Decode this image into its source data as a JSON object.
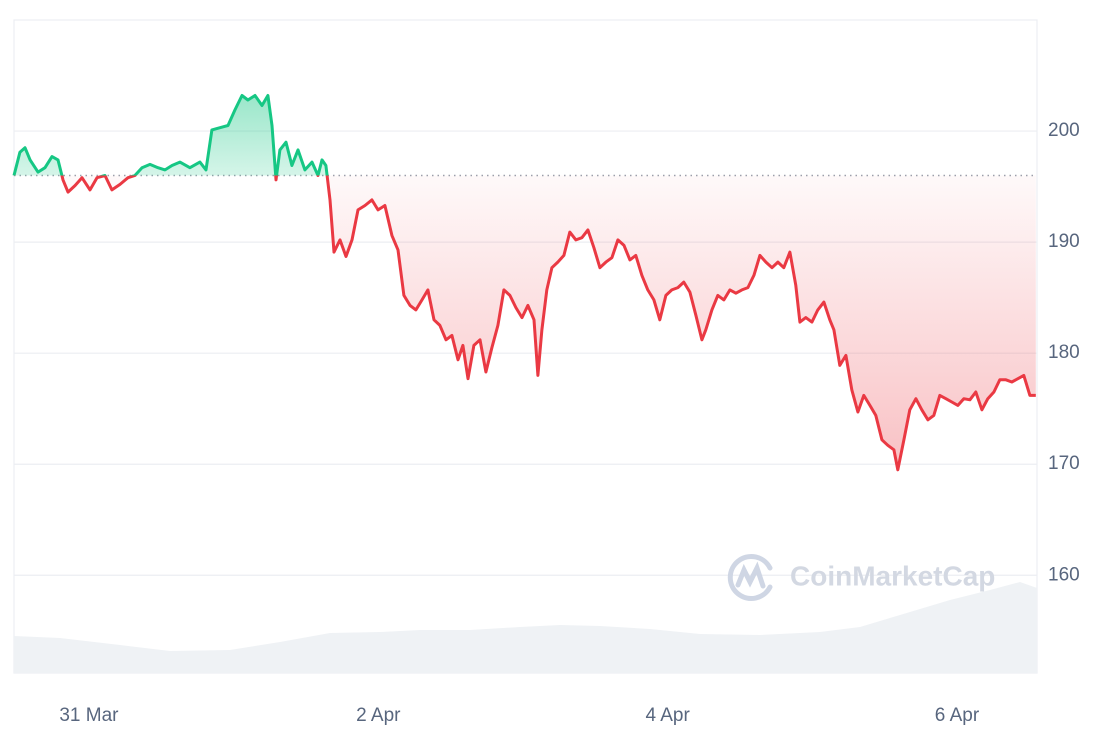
{
  "chart_data": {
    "type": "line",
    "x": [
      -0.518,
      -0.477,
      -0.442,
      -0.407,
      -0.352,
      -0.304,
      -0.255,
      -0.214,
      -0.179,
      -0.145,
      -0.096,
      -0.048,
      0.007,
      0.056,
      0.111,
      0.159,
      0.215,
      0.27,
      0.318,
      0.367,
      0.422,
      0.477,
      0.526,
      0.574,
      0.629,
      0.698,
      0.767,
      0.809,
      0.85,
      0.906,
      0.961,
      1.009,
      1.058,
      1.099,
      1.148,
      1.196,
      1.237,
      1.265,
      1.293,
      1.32,
      1.362,
      1.403,
      1.445,
      1.493,
      1.542,
      1.583,
      1.611,
      1.638,
      1.666,
      1.694,
      1.735,
      1.777,
      1.818,
      1.86,
      1.908,
      1.956,
      1.998,
      2.046,
      2.094,
      2.136,
      2.177,
      2.219,
      2.26,
      2.302,
      2.343,
      2.385,
      2.426,
      2.468,
      2.509,
      2.551,
      2.585,
      2.62,
      2.661,
      2.703,
      2.744,
      2.785,
      2.827,
      2.868,
      2.91,
      2.951,
      2.993,
      3.034,
      3.076,
      3.103,
      3.131,
      3.165,
      3.2,
      3.241,
      3.283,
      3.324,
      3.366,
      3.407,
      3.449,
      3.49,
      3.532,
      3.573,
      3.615,
      3.656,
      3.698,
      3.739,
      3.78,
      3.822,
      3.863,
      3.905,
      3.946,
      3.988,
      4.029,
      4.071,
      4.112,
      4.154,
      4.195,
      4.237,
      4.264,
      4.306,
      4.347,
      4.389,
      4.43,
      4.472,
      4.513,
      4.555,
      4.596,
      4.638,
      4.679,
      4.721,
      4.762,
      4.803,
      4.845,
      4.886,
      4.914,
      4.955,
      4.997,
      5.038,
      5.08,
      5.121,
      5.149,
      5.19,
      5.232,
      5.273,
      5.315,
      5.356,
      5.398,
      5.439,
      5.481,
      5.522,
      5.564,
      5.591,
      5.633,
      5.674,
      5.716,
      5.757,
      5.799,
      5.84,
      5.881,
      5.923,
      5.964,
      6.006,
      6.047,
      6.089,
      6.13,
      6.172,
      6.213,
      6.255,
      6.296,
      6.338,
      6.379,
      6.421,
      6.462,
      6.504,
      6.545
    ],
    "values": [
      196.0,
      198.1,
      198.5,
      197.4,
      196.3,
      196.7,
      197.7,
      197.4,
      195.6,
      194.5,
      195.1,
      195.8,
      194.7,
      195.8,
      196.0,
      194.7,
      195.2,
      195.8,
      196.0,
      196.7,
      197.0,
      196.7,
      196.5,
      196.9,
      197.2,
      196.7,
      197.2,
      196.5,
      200.1,
      200.3,
      200.5,
      201.9,
      203.2,
      202.8,
      203.2,
      202.3,
      203.2,
      200.5,
      195.6,
      198.3,
      199.0,
      196.9,
      198.3,
      196.5,
      197.2,
      196.0,
      197.4,
      196.9,
      193.8,
      189.1,
      190.2,
      188.7,
      190.2,
      192.9,
      193.3,
      193.8,
      192.9,
      193.3,
      190.6,
      189.3,
      185.2,
      184.3,
      183.9,
      184.8,
      185.7,
      183.0,
      182.5,
      181.2,
      181.6,
      179.4,
      180.7,
      177.7,
      180.7,
      181.2,
      178.3,
      180.5,
      182.5,
      185.7,
      185.2,
      184.1,
      183.2,
      184.3,
      183.0,
      178.0,
      182.1,
      185.7,
      187.7,
      188.2,
      188.8,
      190.9,
      190.2,
      190.4,
      191.1,
      189.5,
      187.7,
      188.2,
      188.6,
      190.2,
      189.7,
      188.4,
      188.8,
      187.0,
      185.7,
      184.8,
      183.0,
      185.2,
      185.7,
      185.9,
      186.4,
      185.5,
      183.4,
      181.2,
      182.1,
      183.9,
      185.2,
      184.8,
      185.7,
      185.4,
      185.7,
      185.9,
      187.0,
      188.8,
      188.2,
      187.7,
      188.2,
      187.7,
      189.1,
      186.1,
      182.8,
      183.2,
      182.8,
      183.9,
      184.6,
      183.0,
      182.1,
      178.9,
      179.8,
      176.7,
      174.7,
      176.2,
      175.3,
      174.4,
      172.2,
      171.7,
      171.3,
      169.5,
      172.2,
      174.9,
      175.9,
      174.9,
      174.0,
      174.4,
      176.2,
      175.9,
      175.6,
      175.3,
      175.9,
      175.8,
      176.5,
      174.9,
      175.9,
      176.5,
      177.6,
      177.6,
      177.4,
      177.7,
      178.0,
      176.2,
      176.2
    ],
    "baseline": 196,
    "up_color": "#16c784",
    "down_color": "#ea3943",
    "xlim": [
      -0.518,
      6.553
    ],
    "xticks": [
      {
        "value": 0,
        "label": "31 Mar"
      },
      {
        "value": 2,
        "label": "2 Apr"
      },
      {
        "value": 4,
        "label": "4 Apr"
      },
      {
        "value": 6,
        "label": "6 Apr"
      }
    ],
    "ylim": [
      151.2,
      210
    ],
    "yticks": [
      160,
      170,
      180,
      190,
      200
    ],
    "grid": true,
    "watermark": "CoinMarketCap"
  }
}
